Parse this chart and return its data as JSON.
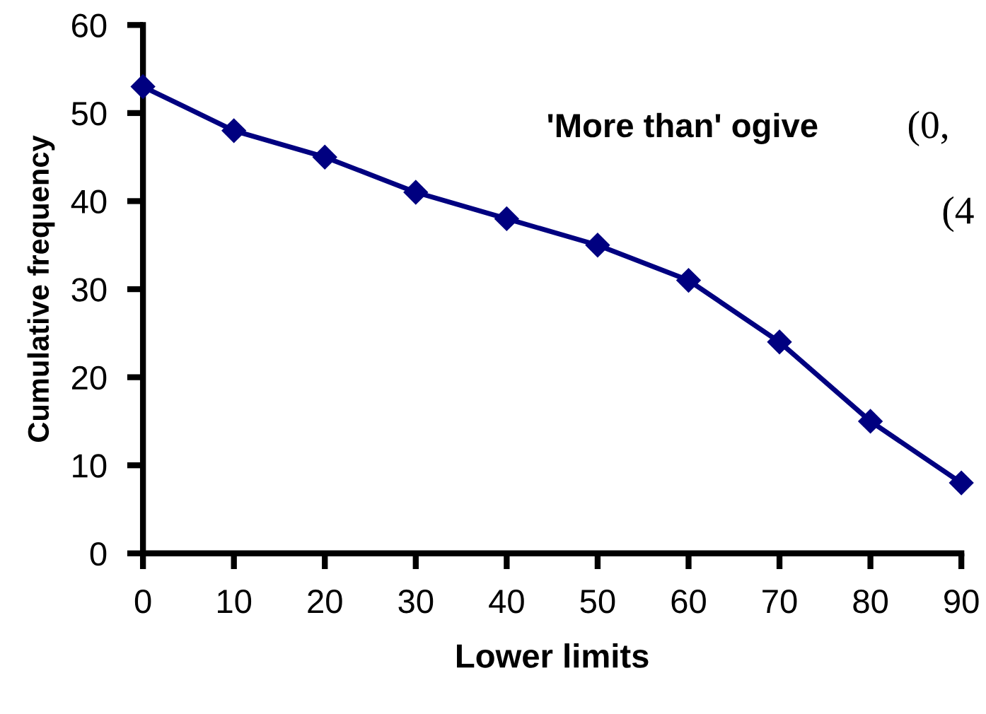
{
  "chart_data": {
    "type": "line",
    "xlabel": "Lower limits",
    "ylabel": "Cumulative frequency",
    "x": [
      0,
      10,
      20,
      30,
      40,
      50,
      60,
      70,
      80,
      90
    ],
    "series": [
      {
        "color": "#000080",
        "values": [
          53,
          48,
          45,
          41,
          38,
          35,
          31,
          24,
          15,
          8
        ]
      }
    ],
    "xlim": [
      0,
      90
    ],
    "xticks": [
      0,
      10,
      20,
      30,
      40,
      50,
      60,
      70,
      80,
      90
    ],
    "ylim": [
      0,
      60
    ],
    "yticks": [
      0,
      10,
      20,
      30,
      40,
      50,
      60
    ],
    "marker": "diamond",
    "line_style": "solid",
    "grid": false,
    "annotations": [
      "'More than' ogive",
      "(0,",
      "(4"
    ]
  }
}
